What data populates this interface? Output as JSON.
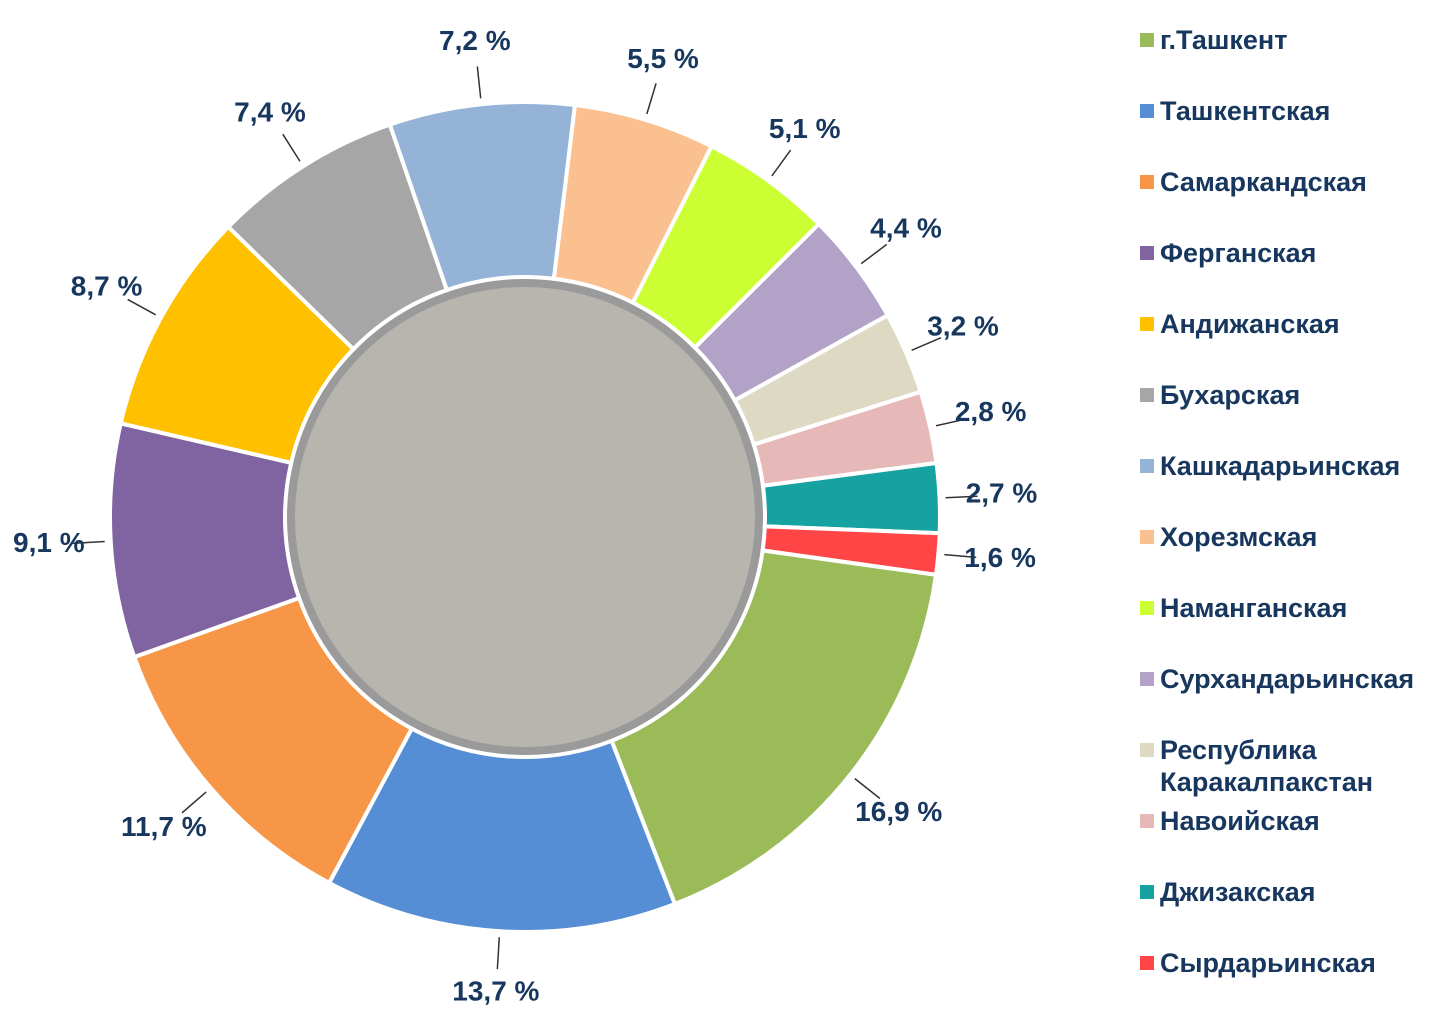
{
  "chart_data": {
    "type": "donut",
    "categories": [
      "г.Ташкент",
      "Ташкентская",
      "Самаркандская",
      "Ферганская",
      "Андижанская",
      "Бухарская",
      "Кашкадарьинская",
      "Хорезмская",
      "Наманганская",
      "Сурхандарьинская",
      "Республика Каракалпакстан",
      "Навоийская",
      "Джизакская",
      "Сырдарьинская"
    ],
    "values": [
      16.9,
      13.7,
      11.7,
      9.1,
      8.7,
      7.4,
      7.2,
      5.5,
      5.1,
      4.4,
      3.2,
      2.8,
      2.7,
      1.6
    ],
    "value_labels": [
      "16,9 %",
      "13,7 %",
      "11,7 %",
      "9,1 %",
      "8,7 %",
      "7,4 %",
      "7,2 %",
      "5,5 %",
      "5,1 %",
      "4,4 %",
      "3,2 %",
      "2,8 %",
      "2,7 %",
      "1,6 %"
    ],
    "colors": [
      "#9bbb59",
      "#558ed5",
      "#f79646",
      "#8064a2",
      "#ffc000",
      "#a6a6a6",
      "#95b3d7",
      "#fac090",
      "#ccff33",
      "#b3a2c7",
      "#ddd9c3",
      "#e6b9b8",
      "#17a2a2",
      "#ff4545"
    ],
    "legend": "right"
  }
}
